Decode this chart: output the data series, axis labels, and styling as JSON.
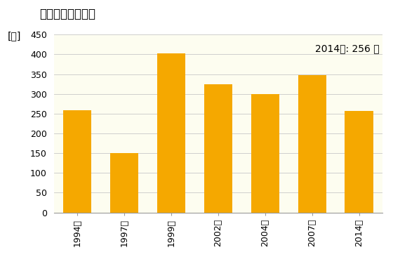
{
  "title": "卸売業の従業者数",
  "ylabel": "[人]",
  "annotation": "2014年: 256 人",
  "categories": [
    "1994年",
    "1997年",
    "1999年",
    "2002年",
    "2004年",
    "2007年",
    "2014年"
  ],
  "values": [
    258,
    150,
    402,
    325,
    299,
    348,
    256
  ],
  "bar_color": "#F5A800",
  "ylim": [
    0,
    450
  ],
  "yticks": [
    0,
    50,
    100,
    150,
    200,
    250,
    300,
    350,
    400,
    450
  ],
  "background_color": "#FFFFFF",
  "plot_area_color": "#FDFDF0",
  "title_fontsize": 12,
  "label_fontsize": 10,
  "tick_fontsize": 9,
  "annotation_fontsize": 10
}
